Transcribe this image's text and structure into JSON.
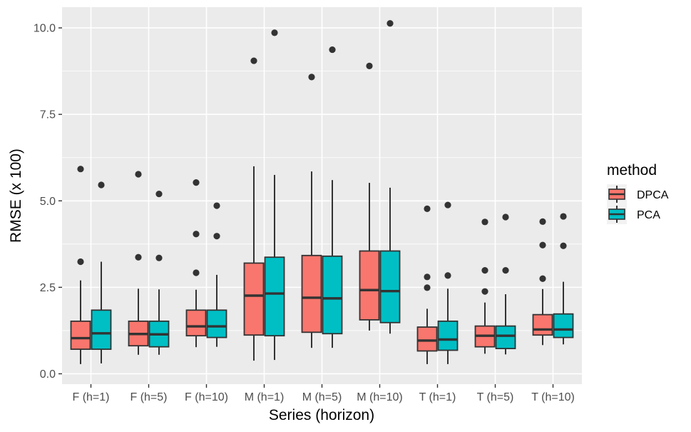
{
  "chart_data": {
    "type": "boxplot",
    "title": "",
    "xlabel": "Series (horizon)",
    "ylabel": "RMSE (x 100)",
    "ylim": [
      -0.3,
      10.6
    ],
    "yticks": [
      0.0,
      2.5,
      5.0,
      7.5,
      10.0
    ],
    "ytick_labels": [
      "0.0",
      "2.5",
      "5.0",
      "7.5",
      "10.0"
    ],
    "grid": true,
    "categories": [
      "F (h=1)",
      "F (h=5)",
      "F (h=10)",
      "M (h=1)",
      "M (h=5)",
      "M (h=10)",
      "T (h=1)",
      "T (h=5)",
      "T (h=10)"
    ],
    "legend": {
      "title": "method",
      "position": "right",
      "entries": [
        {
          "name": "DPCA",
          "color": "#F8766D"
        },
        {
          "name": "PCA",
          "color": "#00BFC4"
        }
      ]
    },
    "series": [
      {
        "name": "DPCA",
        "color": "#F8766D",
        "boxes": [
          {
            "min": 0.28,
            "q1": 0.71,
            "median": 1.03,
            "q3": 1.52,
            "max": 2.7,
            "outliers": [
              3.24,
              5.92
            ]
          },
          {
            "min": 0.55,
            "q1": 0.81,
            "median": 1.15,
            "q3": 1.52,
            "max": 2.46,
            "outliers": [
              3.37,
              5.77
            ]
          },
          {
            "min": 0.77,
            "q1": 1.1,
            "median": 1.37,
            "q3": 1.84,
            "max": 2.43,
            "outliers": [
              2.92,
              4.04,
              5.53
            ]
          },
          {
            "min": 0.38,
            "q1": 1.12,
            "median": 2.26,
            "q3": 3.2,
            "max": 6.0,
            "outliers": [
              9.05
            ]
          },
          {
            "min": 0.75,
            "q1": 1.2,
            "median": 2.2,
            "q3": 3.42,
            "max": 5.85,
            "outliers": [
              8.58
            ]
          },
          {
            "min": 1.25,
            "q1": 1.56,
            "median": 2.42,
            "q3": 3.55,
            "max": 5.52,
            "outliers": [
              8.9
            ]
          },
          {
            "min": 0.28,
            "q1": 0.66,
            "median": 0.96,
            "q3": 1.35,
            "max": 1.88,
            "outliers": [
              2.49,
              2.8,
              4.77
            ]
          },
          {
            "min": 0.58,
            "q1": 0.78,
            "median": 1.1,
            "q3": 1.38,
            "max": 2.06,
            "outliers": [
              2.38,
              2.99,
              4.39
            ]
          },
          {
            "min": 0.83,
            "q1": 1.12,
            "median": 1.28,
            "q3": 1.71,
            "max": 2.45,
            "outliers": [
              2.75,
              3.72,
              4.4
            ]
          }
        ]
      },
      {
        "name": "PCA",
        "color": "#00BFC4",
        "boxes": [
          {
            "min": 0.3,
            "q1": 0.71,
            "median": 1.17,
            "q3": 1.84,
            "max": 3.24,
            "outliers": [
              5.46
            ]
          },
          {
            "min": 0.55,
            "q1": 0.78,
            "median": 1.14,
            "q3": 1.52,
            "max": 2.44,
            "outliers": [
              3.35,
              5.2
            ]
          },
          {
            "min": 0.78,
            "q1": 1.05,
            "median": 1.37,
            "q3": 1.84,
            "max": 2.86,
            "outliers": [
              3.98,
              4.86
            ]
          },
          {
            "min": 0.4,
            "q1": 1.1,
            "median": 2.32,
            "q3": 3.37,
            "max": 5.75,
            "outliers": [
              9.86
            ]
          },
          {
            "min": 0.75,
            "q1": 1.16,
            "median": 2.18,
            "q3": 3.4,
            "max": 5.6,
            "outliers": [
              9.37
            ]
          },
          {
            "min": 1.16,
            "q1": 1.48,
            "median": 2.39,
            "q3": 3.55,
            "max": 5.38,
            "outliers": [
              10.13
            ]
          },
          {
            "min": 0.28,
            "q1": 0.68,
            "median": 0.99,
            "q3": 1.52,
            "max": 2.46,
            "outliers": [
              2.84,
              4.88
            ]
          },
          {
            "min": 0.56,
            "q1": 0.73,
            "median": 1.1,
            "q3": 1.38,
            "max": 2.3,
            "outliers": [
              2.99,
              4.53
            ]
          },
          {
            "min": 0.85,
            "q1": 1.05,
            "median": 1.28,
            "q3": 1.73,
            "max": 2.66,
            "outliers": [
              3.7,
              4.55
            ]
          }
        ]
      }
    ]
  }
}
